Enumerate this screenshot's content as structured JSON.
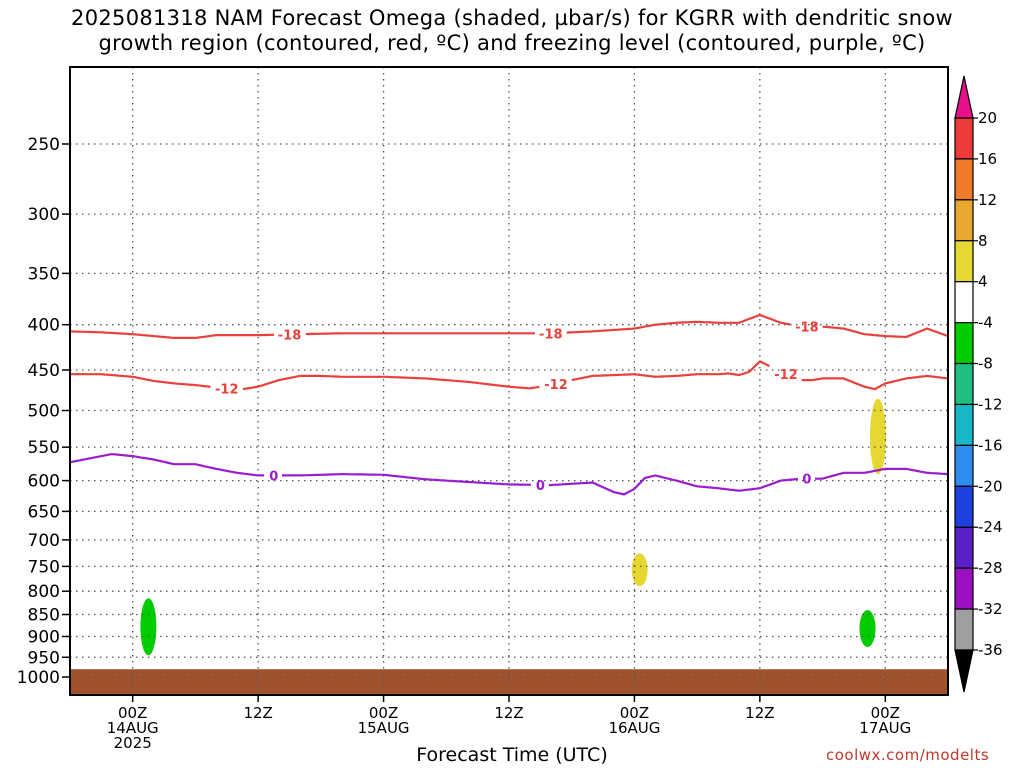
{
  "title_line1": "2025081318 NAM Forecast Omega (shaded, µbar/s) for KGRR with dendritic snow",
  "title_line2": "growth region (contoured, red, ºC) and freezing level (contoured, purple, ºC)",
  "credit": "coolwx.com/modelts",
  "chart_data": {
    "type": "time-height",
    "title": "2025081318 NAM Forecast Omega (shaded, µbar/s) for KGRR with dendritic snow growth region (contoured, red, ºC) and freezing level (contoured, purple, ºC)",
    "xlabel": "Forecast Time (UTC)",
    "ylabel": "",
    "y_scale": "log",
    "y_reversed": true,
    "ylim": [
      1040,
      200
    ],
    "xlim_hours": [
      -6,
      78
    ],
    "grid": true,
    "x_ticks": [
      {
        "hour": 0,
        "lines": [
          "00Z",
          "14AUG",
          "2025"
        ]
      },
      {
        "hour": 12,
        "lines": [
          "12Z"
        ]
      },
      {
        "hour": 24,
        "lines": [
          "00Z",
          "15AUG"
        ]
      },
      {
        "hour": 36,
        "lines": [
          "12Z"
        ]
      },
      {
        "hour": 48,
        "lines": [
          "00Z",
          "16AUG"
        ]
      },
      {
        "hour": 60,
        "lines": [
          "12Z"
        ]
      },
      {
        "hour": 72,
        "lines": [
          "00Z",
          "17AUG"
        ]
      }
    ],
    "y_ticks": [
      250,
      300,
      350,
      400,
      450,
      500,
      550,
      600,
      650,
      700,
      750,
      800,
      850,
      900,
      950,
      1000
    ],
    "surface_fill": {
      "color": "#a0522d",
      "pressure_top": 980
    },
    "contours": [
      {
        "level": "-18",
        "label": "-18",
        "color": "#e8413b",
        "x": [
          -6,
          -3,
          0,
          2,
          4,
          6,
          8,
          10,
          12,
          16,
          20,
          24,
          28,
          32,
          36,
          40,
          44,
          48,
          50,
          52,
          54,
          56,
          58,
          60,
          62,
          64,
          66,
          68,
          70,
          72,
          74,
          76,
          78
        ],
        "y": [
          407,
          408,
          410,
          412,
          414,
          414,
          411,
          411,
          411,
          410,
          409,
          409,
          409,
          409,
          409,
          409,
          407,
          404,
          400,
          398,
          397,
          398,
          398,
          390,
          398,
          402,
          402,
          404,
          410,
          412,
          413,
          404,
          412
        ],
        "labels_at": [
          15,
          40,
          64.5
        ]
      },
      {
        "level": "-12",
        "label": "-12",
        "color": "#e8413b",
        "x": [
          -6,
          -3,
          0,
          2,
          4,
          6,
          8,
          10,
          12,
          14,
          16,
          18,
          20,
          24,
          28,
          32,
          36,
          38,
          40,
          42,
          44,
          48,
          50,
          52,
          54,
          56,
          57,
          58,
          59,
          60,
          62,
          63,
          64,
          65,
          66,
          68,
          70,
          71,
          72,
          74,
          76,
          78
        ],
        "y": [
          455,
          455,
          458,
          463,
          466,
          468,
          471,
          474,
          470,
          462,
          457,
          457,
          458,
          458,
          460,
          464,
          470,
          472,
          468,
          462,
          457,
          455,
          458,
          457,
          455,
          455,
          454,
          456,
          452,
          440,
          452,
          458,
          462,
          462,
          460,
          460,
          470,
          473,
          466,
          460,
          457,
          460
        ],
        "labels_at": [
          9,
          40.5,
          62.5
        ]
      },
      {
        "level": "0",
        "label": "0",
        "color": "#9b1ccf",
        "x": [
          -6,
          -4,
          -2,
          0,
          2,
          4,
          6,
          8,
          10,
          12,
          16,
          20,
          24,
          28,
          32,
          36,
          40,
          44,
          46,
          47,
          48,
          49,
          50,
          52,
          54,
          56,
          58,
          60,
          62,
          64,
          66,
          68,
          70,
          72,
          74,
          76,
          78
        ],
        "y": [
          572,
          566,
          560,
          563,
          568,
          575,
          575,
          582,
          588,
          592,
          592,
          590,
          591,
          598,
          602,
          606,
          607,
          603,
          618,
          622,
          613,
          596,
          592,
          600,
          609,
          612,
          616,
          612,
          600,
          597,
          597,
          588,
          588,
          582,
          582,
          588,
          590
        ],
        "labels_at": [
          13.5,
          39,
          64.5
        ]
      }
    ],
    "omega_shading": [
      {
        "color": "#00cc00",
        "range": "-8 to -4",
        "center_hour": 1.5,
        "p_top": 815,
        "p_bottom": 945
      },
      {
        "color": "#e6d830",
        "range": "4 to 8",
        "center_hour": 48.5,
        "p_top": 725,
        "p_bottom": 790
      },
      {
        "color": "#00cc00",
        "range": "-8 to -4",
        "center_hour": 70.3,
        "p_top": 840,
        "p_bottom": 925
      },
      {
        "color": "#e6d830",
        "range": "4 to 8",
        "center_hour": 71.3,
        "p_top": 485,
        "p_bottom": 590
      }
    ],
    "colorbar": {
      "top_triangle_color": "#e8108a",
      "bottom_triangle_color": "#000000",
      "bins": [
        {
          "color": "#ee3a3a"
        },
        {
          "color": "#ee7a2a"
        },
        {
          "color": "#e8a830"
        },
        {
          "color": "#e6d830"
        },
        {
          "color": "#ffffff"
        },
        {
          "color": "#00cc00"
        },
        {
          "color": "#1fbf7f"
        },
        {
          "color": "#1ab7c9"
        },
        {
          "color": "#2d8ef0"
        },
        {
          "color": "#2040e0"
        },
        {
          "color": "#5a20c8"
        },
        {
          "color": "#9b10c0"
        },
        {
          "color": "#a0a0a0"
        }
      ],
      "labels": [
        "20",
        "16",
        "12",
        "8",
        "4",
        "-4",
        "-8",
        "-12",
        "-16",
        "-20",
        "-24",
        "-28",
        "-32",
        "-36"
      ]
    }
  }
}
